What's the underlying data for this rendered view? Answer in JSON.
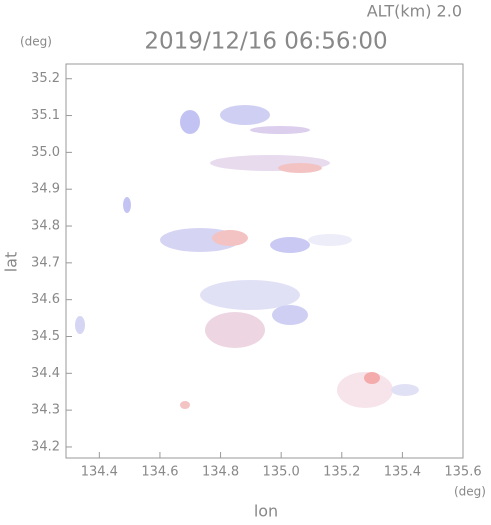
{
  "chart_data": {
    "type": "image",
    "title": "2019/12/16 06:56:00",
    "annotation": "ALT(km) 2.0",
    "y_unit": "(deg)",
    "x_unit": "(deg)",
    "x_label": "lon",
    "y_label": "lat",
    "xlim": [
      134.29,
      135.6
    ],
    "ylim": [
      34.17,
      35.24
    ],
    "xticks": [
      134.4,
      134.6,
      134.8,
      {
        "value": 135,
        "label": "135.0"
      },
      135.2,
      135.4,
      135.6
    ],
    "yticks": [
      34.2,
      34.3,
      34.4,
      34.5,
      34.6,
      34.7,
      34.8,
      34.9,
      {
        "value": 35,
        "label": "35.0"
      },
      35.1,
      35.2
    ]
  }
}
